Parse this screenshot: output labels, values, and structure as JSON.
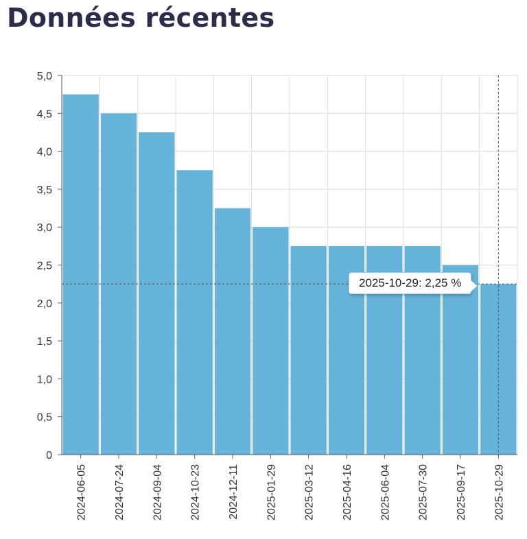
{
  "page": {
    "title": "Données récentes"
  },
  "chart_data": {
    "type": "bar",
    "categories": [
      "2024-06-05",
      "2024-07-24",
      "2024-09-04",
      "2024-10-23",
      "2024-12-11",
      "2025-01-29",
      "2025-03-12",
      "2025-04-16",
      "2025-06-04",
      "2025-07-30",
      "2025-09-17",
      "2025-10-29"
    ],
    "values": [
      4.75,
      4.5,
      4.25,
      3.75,
      3.25,
      3.0,
      2.75,
      2.75,
      2.75,
      2.75,
      2.5,
      2.25
    ],
    "ylim": [
      0,
      5
    ],
    "yticks": [
      0,
      0.5,
      1.0,
      1.5,
      2.0,
      2.5,
      3.0,
      3.5,
      4.0,
      4.5,
      5.0
    ],
    "ytick_labels": [
      "0",
      "0,5",
      "1,0",
      "1,5",
      "2,0",
      "2,5",
      "3,0",
      "3,5",
      "4,0",
      "4,5",
      "5,0"
    ],
    "grid": true,
    "bar_color": "#66b3da",
    "crosshair_category": "2025-10-29",
    "crosshair_value": 2.25,
    "tooltip": "2025-10-29: 2,25 %"
  }
}
